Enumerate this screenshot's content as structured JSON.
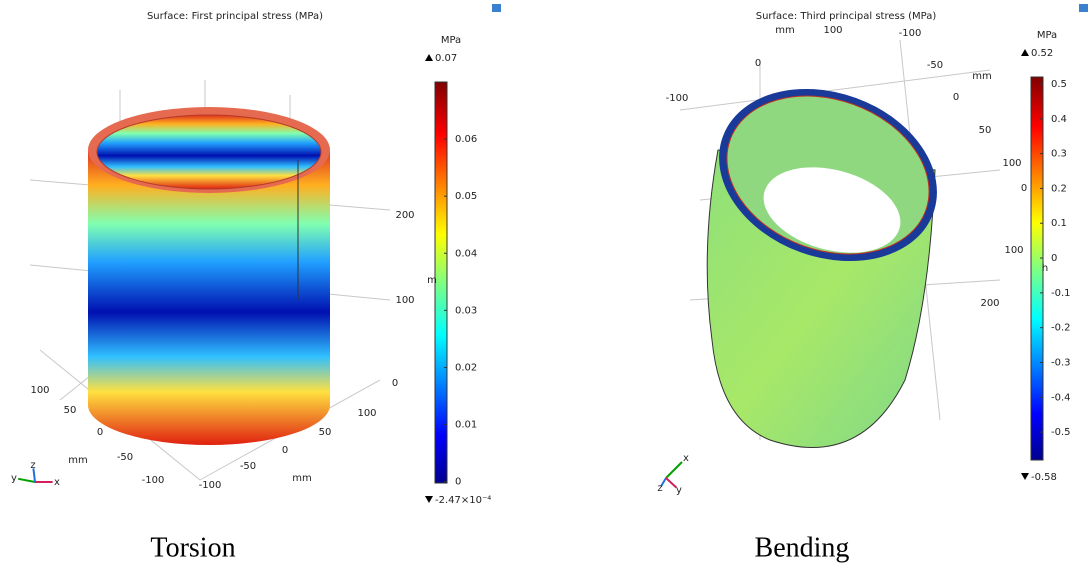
{
  "panels": [
    {
      "title": "Surface: First principal stress (MPa)",
      "unit": "MPa",
      "colorbar": {
        "max": 0.07,
        "min": {
          "value": -0.000247,
          "label": "-2.47×10⁻⁴"
        },
        "ticks": [
          0,
          0.01,
          0.02,
          0.03,
          0.04,
          0.05,
          0.06
        ]
      },
      "axis_labels": [
        "200",
        "100",
        "0",
        "100",
        "50",
        "0",
        "-50",
        "-100",
        "mm",
        "100",
        "50",
        "0",
        "mm",
        "-50",
        "-100",
        "m"
      ],
      "triad": [
        "y",
        "z",
        "x"
      ],
      "caption": "Torsion"
    },
    {
      "title": "Surface: Third principal stress (MPa)",
      "unit": "MPa",
      "colorbar": {
        "max": 0.52,
        "min": -0.58,
        "ticks": [
          -0.5,
          -0.4,
          -0.3,
          -0.2,
          -0.1,
          0,
          0.1,
          0.2,
          0.3,
          0.4,
          0.5
        ]
      },
      "axis_labels": [
        "mm",
        "100",
        "-100",
        "0",
        "-50",
        "mm",
        "-100",
        "0",
        "50",
        "100",
        "0",
        "100",
        "200",
        "h"
      ],
      "triad": [
        "x",
        "z",
        "y"
      ],
      "caption": "Bending"
    }
  ]
}
